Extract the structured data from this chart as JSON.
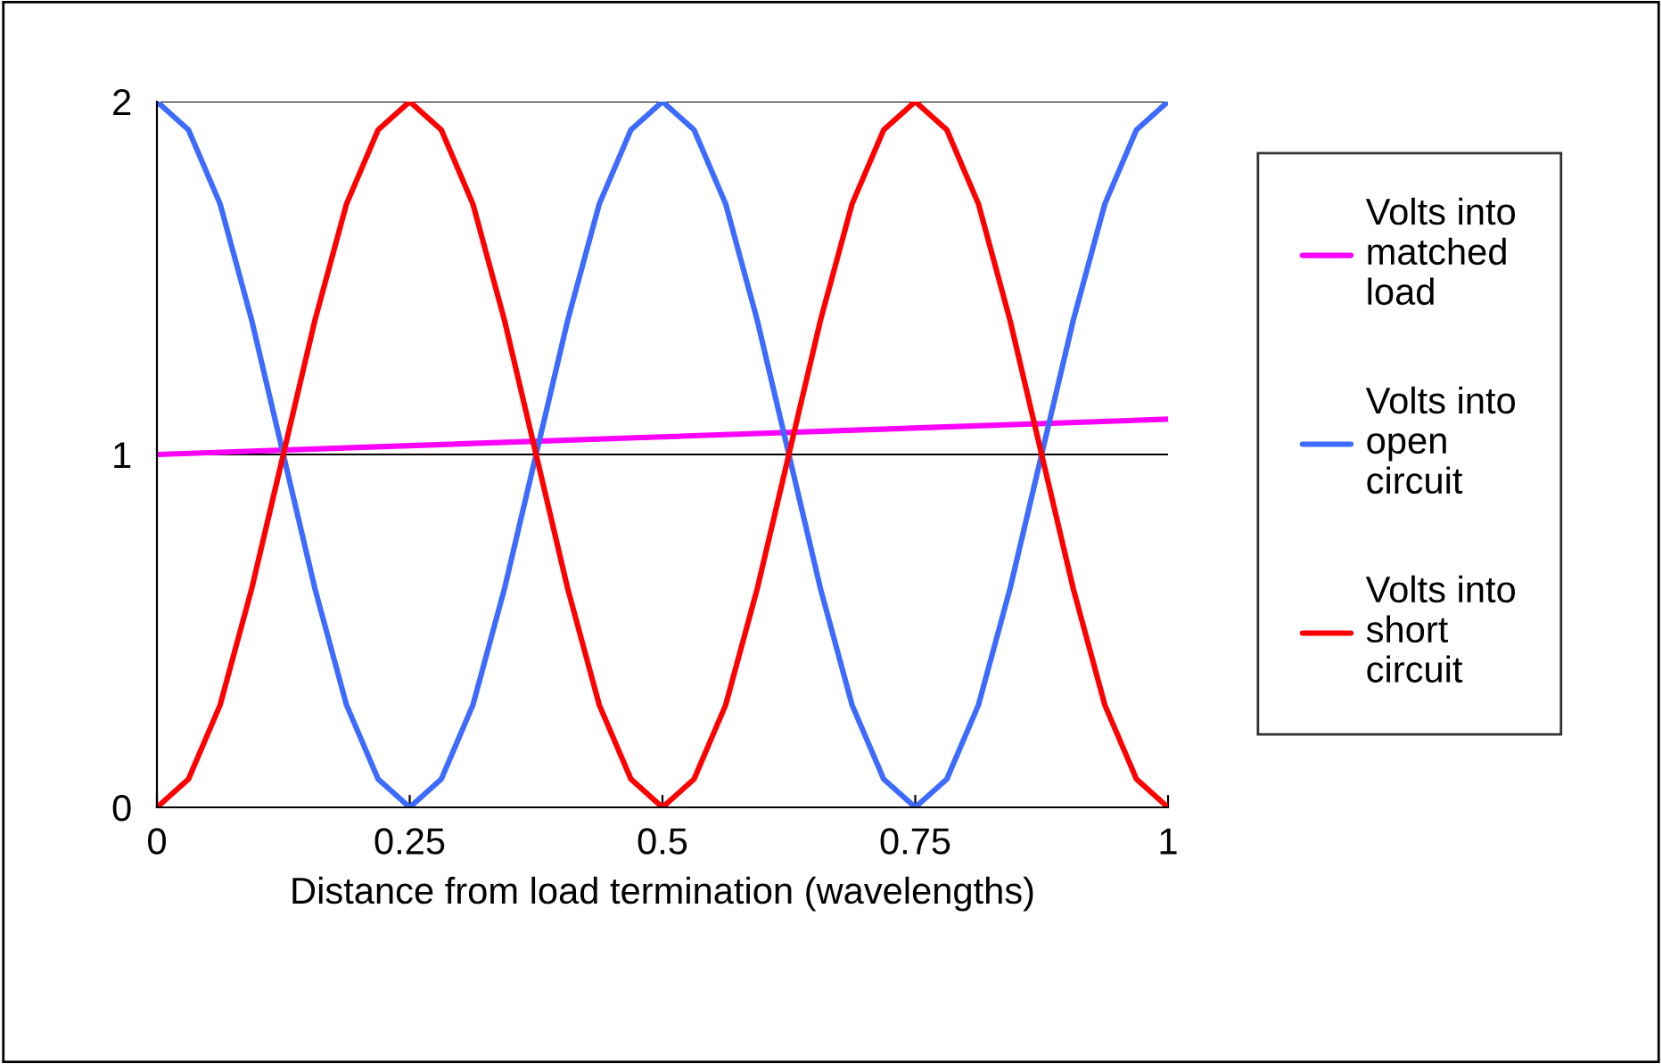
{
  "chart_data": {
    "type": "line",
    "xlabel": "Distance from load termination (wavelengths)",
    "x": [
      0,
      0.03125,
      0.0625,
      0.09375,
      0.125,
      0.15625,
      0.1875,
      0.21875,
      0.25,
      0.28125,
      0.3125,
      0.34375,
      0.375,
      0.40625,
      0.4375,
      0.46875,
      0.5,
      0.53125,
      0.5625,
      0.59375,
      0.625,
      0.65625,
      0.6875,
      0.71875,
      0.75,
      0.78125,
      0.8125,
      0.84375,
      0.875,
      0.90625,
      0.9375,
      0.96875,
      1
    ],
    "series": [
      {
        "name": "Volts into matched load",
        "color": "#ff00ff",
        "x": [
          0,
          1
        ],
        "values": [
          1,
          1.1
        ]
      },
      {
        "name": "Volts into open circuit",
        "color": "#3d6bff",
        "values": [
          2,
          1.92,
          1.71,
          1.38,
          1,
          0.62,
          0.29,
          0.08,
          0,
          0.08,
          0.29,
          0.62,
          1,
          1.38,
          1.71,
          1.92,
          2,
          1.92,
          1.71,
          1.38,
          1,
          0.62,
          0.29,
          0.08,
          0,
          0.08,
          0.29,
          0.62,
          1,
          1.38,
          1.71,
          1.92,
          2
        ]
      },
      {
        "name": "Volts into short circuit",
        "color": "#ff0000",
        "values": [
          0,
          0.08,
          0.29,
          0.62,
          1,
          1.38,
          1.71,
          1.92,
          2,
          1.92,
          1.71,
          1.38,
          1,
          0.62,
          0.29,
          0.08,
          0,
          0.08,
          0.29,
          0.62,
          1,
          1.38,
          1.71,
          1.92,
          2,
          1.92,
          1.71,
          1.38,
          1,
          0.62,
          0.29,
          0.08,
          0
        ]
      }
    ],
    "xlim": [
      0,
      1
    ],
    "xticks": [
      0,
      0.25,
      0.5,
      0.75,
      1
    ],
    "ylim": [
      0,
      2
    ],
    "yticks": [
      0,
      1,
      2
    ],
    "grid": "y",
    "legend": "right",
    "line_style": "solid",
    "marker": "none"
  }
}
